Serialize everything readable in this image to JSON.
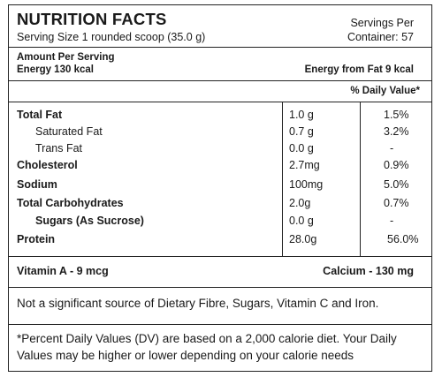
{
  "label": {
    "title": "NUTRITION FACTS",
    "serving_size": "Serving Size 1 rounded scoop (35.0 g)",
    "servings_per": "Servings Per",
    "container": "Container: 57",
    "amount_per_serving": "Amount Per Serving",
    "energy": "Energy 130 kcal",
    "energy_from_fat": "Energy from Fat 9 kcal",
    "daily_value_header": "% Daily Value*"
  },
  "nutrients": [
    {
      "name": "Total Fat",
      "amount": "1.0 g",
      "dv": "1.5%",
      "bold": true,
      "indent": false
    },
    {
      "name": "Saturated Fat",
      "amount": "0.7 g",
      "dv": "3.2%",
      "bold": false,
      "indent": true
    },
    {
      "name": "Trans Fat",
      "amount": "0.0 g",
      "dv": "-",
      "bold": false,
      "indent": true
    },
    {
      "name": "Cholesterol",
      "amount": "2.7mg",
      "dv": "0.9%",
      "bold": true,
      "indent": false
    },
    {
      "name": "Sodium",
      "amount": "100mg",
      "dv": "5.0%",
      "bold": true,
      "indent": false
    },
    {
      "name": "Total Carbohydrates",
      "amount": "2.0g",
      "dv": "0.7%",
      "bold": true,
      "indent": false
    },
    {
      "name": "Sugars (As Sucrose)",
      "amount": "0.0 g",
      "dv": "-",
      "bold": true,
      "indent": true
    },
    {
      "name": "Protein",
      "amount": "28.0g",
      "dv": "56.0%",
      "bold": true,
      "indent": false
    }
  ],
  "vitamins": {
    "vitamin_a": "Vitamin A - 9 mcg",
    "calcium": "Calcium - 130 mg"
  },
  "notes": {
    "not_significant": "Not a significant source of Dietary Fibre, Sugars, Vitamin C and Iron.",
    "footnote": "*Percent Daily Values (DV) are based on a 2,000 calorie diet. Your Daily Values may be higher or lower depending on your calorie needs"
  }
}
